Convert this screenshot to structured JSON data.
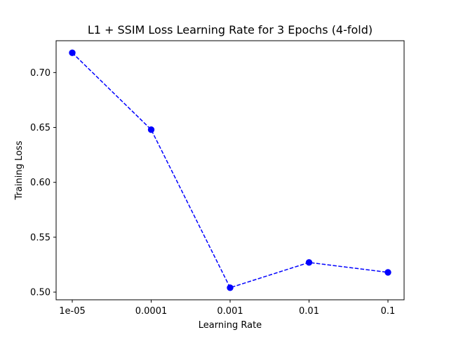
{
  "chart_data": {
    "type": "line",
    "title": "L1 + SSIM Loss Learning Rate for 3 Epochs (4-fold)",
    "xlabel": "Learning Rate",
    "ylabel": "Training Loss",
    "categories": [
      "1e-05",
      "0.0001",
      "0.001",
      "0.01",
      "0.1"
    ],
    "series": [
      {
        "values": [
          0.718,
          0.648,
          0.504,
          0.527,
          0.518
        ],
        "color": "#0000ff",
        "line_style": "dashed",
        "marker": "circle"
      }
    ],
    "ylim": [
      0.493,
      0.729
    ],
    "yticks": [
      0.5,
      0.55,
      0.6,
      0.65,
      0.7
    ],
    "ytick_labels": [
      "0.50",
      "0.55",
      "0.60",
      "0.65",
      "0.70"
    ],
    "grid": false,
    "legend": "none"
  }
}
